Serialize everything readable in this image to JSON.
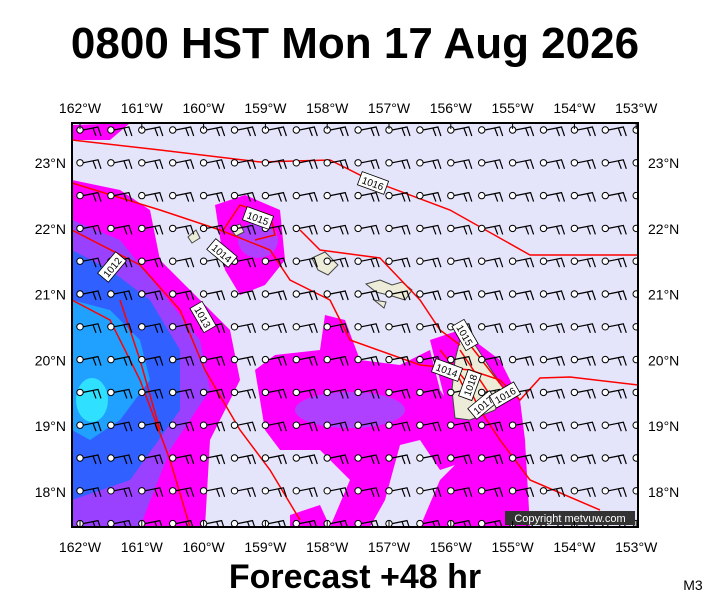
{
  "title": "0800 HST Mon 17 Aug 2026",
  "footer": "Forecast +48 hr",
  "corner_label": "M3",
  "copyright": "Copyright metvuw.com",
  "lon_labels": [
    "162°W",
    "161°W",
    "160°W",
    "159°W",
    "158°W",
    "157°W",
    "156°W",
    "155°W",
    "154°W",
    "153°W"
  ],
  "lat_labels": [
    "23°N",
    "22°N",
    "21°N",
    "20°N",
    "19°N",
    "18°N"
  ],
  "isobar_labels": [
    "1016",
    "1015",
    "1014",
    "1012",
    "1013",
    "1015",
    "1014",
    "1018",
    "1017",
    "1016"
  ]
}
